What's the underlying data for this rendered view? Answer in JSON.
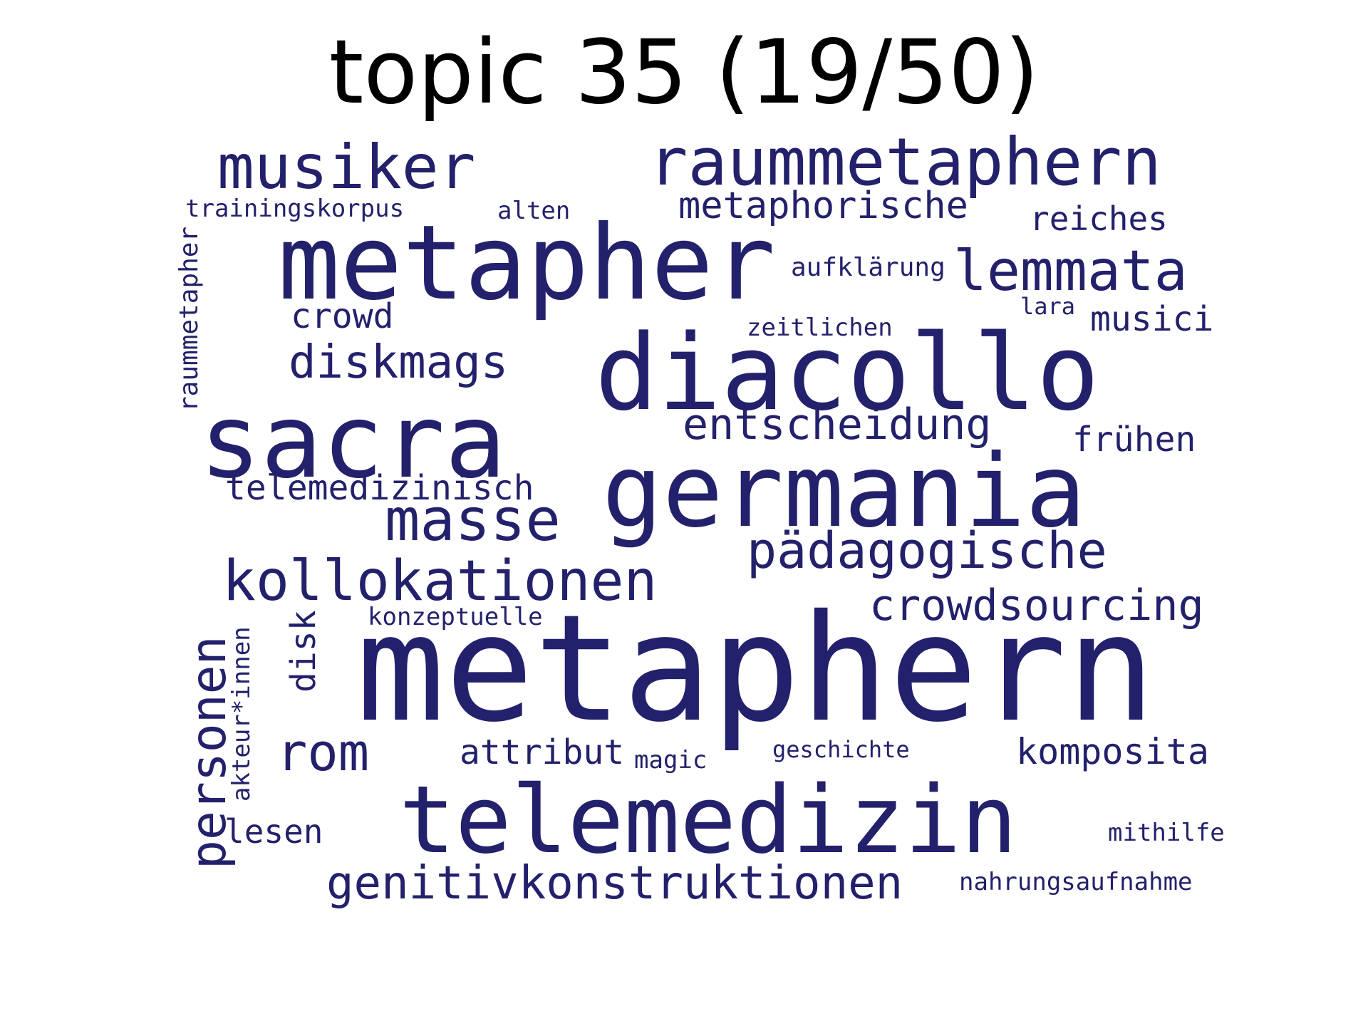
{
  "title": "topic 35 (19/50)",
  "word_color": "#23216b",
  "words": {
    "metaphern": "metaphern",
    "metapher": "metapher",
    "diacollo": "diacollo",
    "sacra": "sacra",
    "germania": "germania",
    "telemedizin": "telemedizin",
    "raummetaphern": "raummetaphern",
    "musiker": "musiker",
    "kollokationen": "kollokationen",
    "masse": "masse",
    "paedagogische": "pädagogische",
    "genitivkonstruktionen": "genitivkonstruktionen",
    "personen": "personen",
    "lemmata": "lemmata",
    "diskmags": "diskmags",
    "entscheidung": "entscheidung",
    "crowdsourcing": "crowdsourcing",
    "rom": "rom",
    "metaphorische": "metaphorische",
    "telemedizinisch": "telemedizinisch",
    "komposita": "komposita",
    "attribut": "attribut",
    "crowd": "crowd",
    "reiches": "reiches",
    "fruehen": "frühen",
    "musici": "musici",
    "lesen": "lesen",
    "disk": "disk",
    "trainingskorpus": "trainingskorpus",
    "raummetapher": "raummetapher",
    "akteur_innen": "akteur*innen",
    "aufklaerung": "aufklärung",
    "zeitlichen": "zeitlichen",
    "alten": "alten",
    "lara": "lara",
    "konzeptuelle": "konzeptuelle",
    "magic": "magic",
    "geschichte": "geschichte",
    "mithilfe": "mithilfe",
    "nahrungsaufnahme": "nahrungsaufnahme"
  }
}
